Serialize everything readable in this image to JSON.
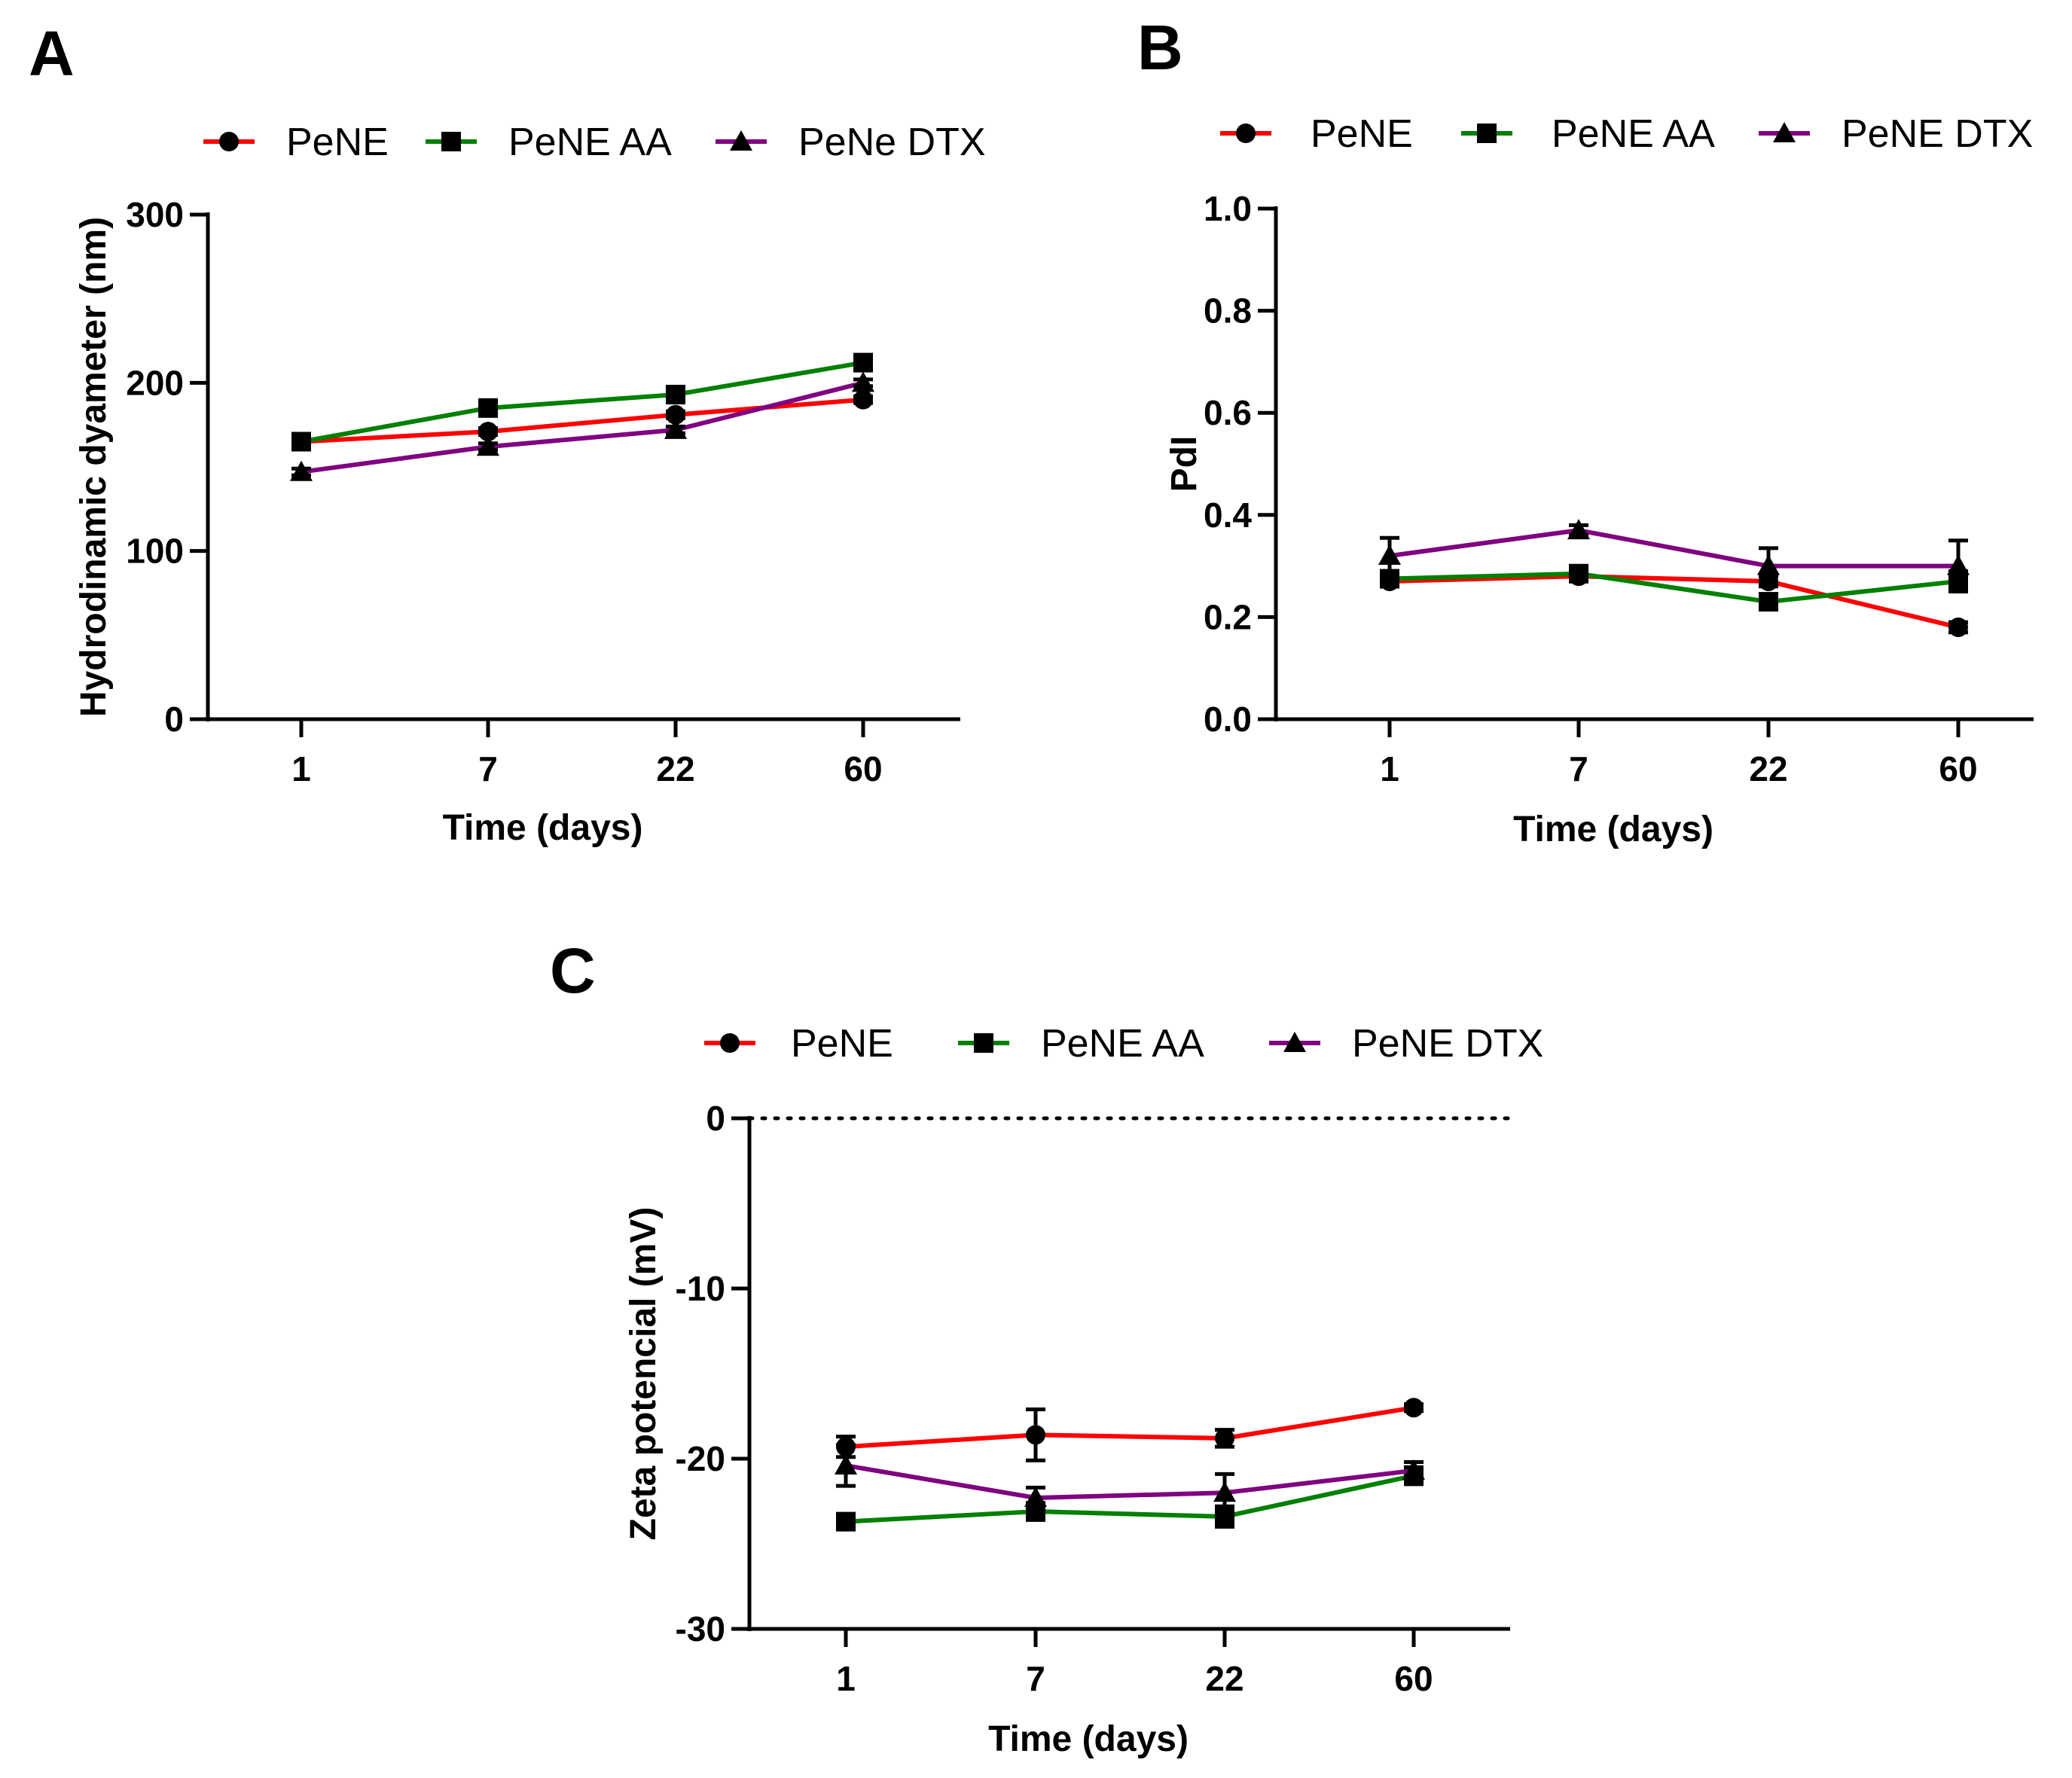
{
  "colors": {
    "PeNE": "#ff0000",
    "PeNE AA": "#008000",
    "PeNE DTX": "#800080",
    "axis": "#000000"
  },
  "chart_data": [
    {
      "id": "A",
      "type": "line",
      "panel_label": "A",
      "title": "",
      "xlabel": "Time (days)",
      "ylabel": "Hydrodinamic dyameter (nm)",
      "categories": [
        "1",
        "7",
        "22",
        "60"
      ],
      "ylim": [
        0,
        300
      ],
      "yticks": [
        0,
        100,
        200,
        300
      ],
      "ytick_labels": [
        "0",
        "100",
        "200",
        "300"
      ],
      "grid": false,
      "legend_position": "top",
      "series": [
        {
          "name": "PeNE",
          "marker": "circle",
          "values": [
            165,
            171,
            181,
            190
          ],
          "errors": [
            2,
            2,
            2,
            2
          ]
        },
        {
          "name": "PeNE AA",
          "marker": "square",
          "values": [
            165,
            185,
            193,
            212
          ],
          "errors": [
            2,
            2,
            2,
            2
          ]
        },
        {
          "name": "PeNe DTX",
          "marker": "triangle",
          "values": [
            147,
            162,
            172,
            200
          ],
          "errors": [
            2,
            2,
            2,
            2
          ]
        }
      ]
    },
    {
      "id": "B",
      "type": "line",
      "panel_label": "B",
      "title": "",
      "xlabel": "Time (days)",
      "ylabel": "PdI",
      "categories": [
        "1",
        "7",
        "22",
        "60"
      ],
      "ylim": [
        0,
        1
      ],
      "yticks": [
        0,
        0.2,
        0.4,
        0.6,
        0.8,
        1.0
      ],
      "ytick_labels": [
        "0.0",
        "0.2",
        "0.4",
        "0.6",
        "0.8",
        "1.0"
      ],
      "grid": false,
      "legend_position": "top",
      "series": [
        {
          "name": "PeNE",
          "marker": "circle",
          "values": [
            0.27,
            0.28,
            0.27,
            0.18
          ],
          "errors": [
            0.01,
            0.01,
            0.01,
            0.01
          ]
        },
        {
          "name": "PeNE AA",
          "marker": "square",
          "values": [
            0.275,
            0.285,
            0.23,
            0.27
          ],
          "errors": [
            0.01,
            0.01,
            0.01,
            0.02
          ]
        },
        {
          "name": "PeNE DTX",
          "marker": "triangle",
          "values": [
            0.32,
            0.37,
            0.3,
            0.3
          ],
          "errors": [
            0.035,
            0.01,
            0.035,
            0.05
          ]
        }
      ]
    },
    {
      "id": "C",
      "type": "line",
      "panel_label": "C",
      "title": "",
      "xlabel": "Time (days)",
      "ylabel": "Zeta potencial (mV)",
      "categories": [
        "1",
        "7",
        "22",
        "60"
      ],
      "ylim": [
        -30,
        0
      ],
      "yticks": [
        -30,
        -20,
        -10,
        0
      ],
      "ytick_labels": [
        "-30",
        "-20",
        "-10",
        "0"
      ],
      "grid": false,
      "reference_line": 0,
      "legend_position": "top",
      "series": [
        {
          "name": "PeNE",
          "marker": "circle",
          "values": [
            -19.3,
            -18.6,
            -18.8,
            -17.0
          ],
          "errors": [
            0.6,
            1.5,
            0.5,
            0.2
          ]
        },
        {
          "name": "PeNE AA",
          "marker": "square",
          "values": [
            -23.7,
            -23.1,
            -23.4,
            -21.0
          ],
          "errors": [
            0.3,
            0.5,
            0.6,
            0.5
          ]
        },
        {
          "name": "PeNE DTX",
          "marker": "triangle",
          "values": [
            -20.4,
            -22.3,
            -22.0,
            -20.7
          ],
          "errors": [
            1.2,
            0.6,
            1.1,
            0.5
          ]
        }
      ]
    }
  ]
}
